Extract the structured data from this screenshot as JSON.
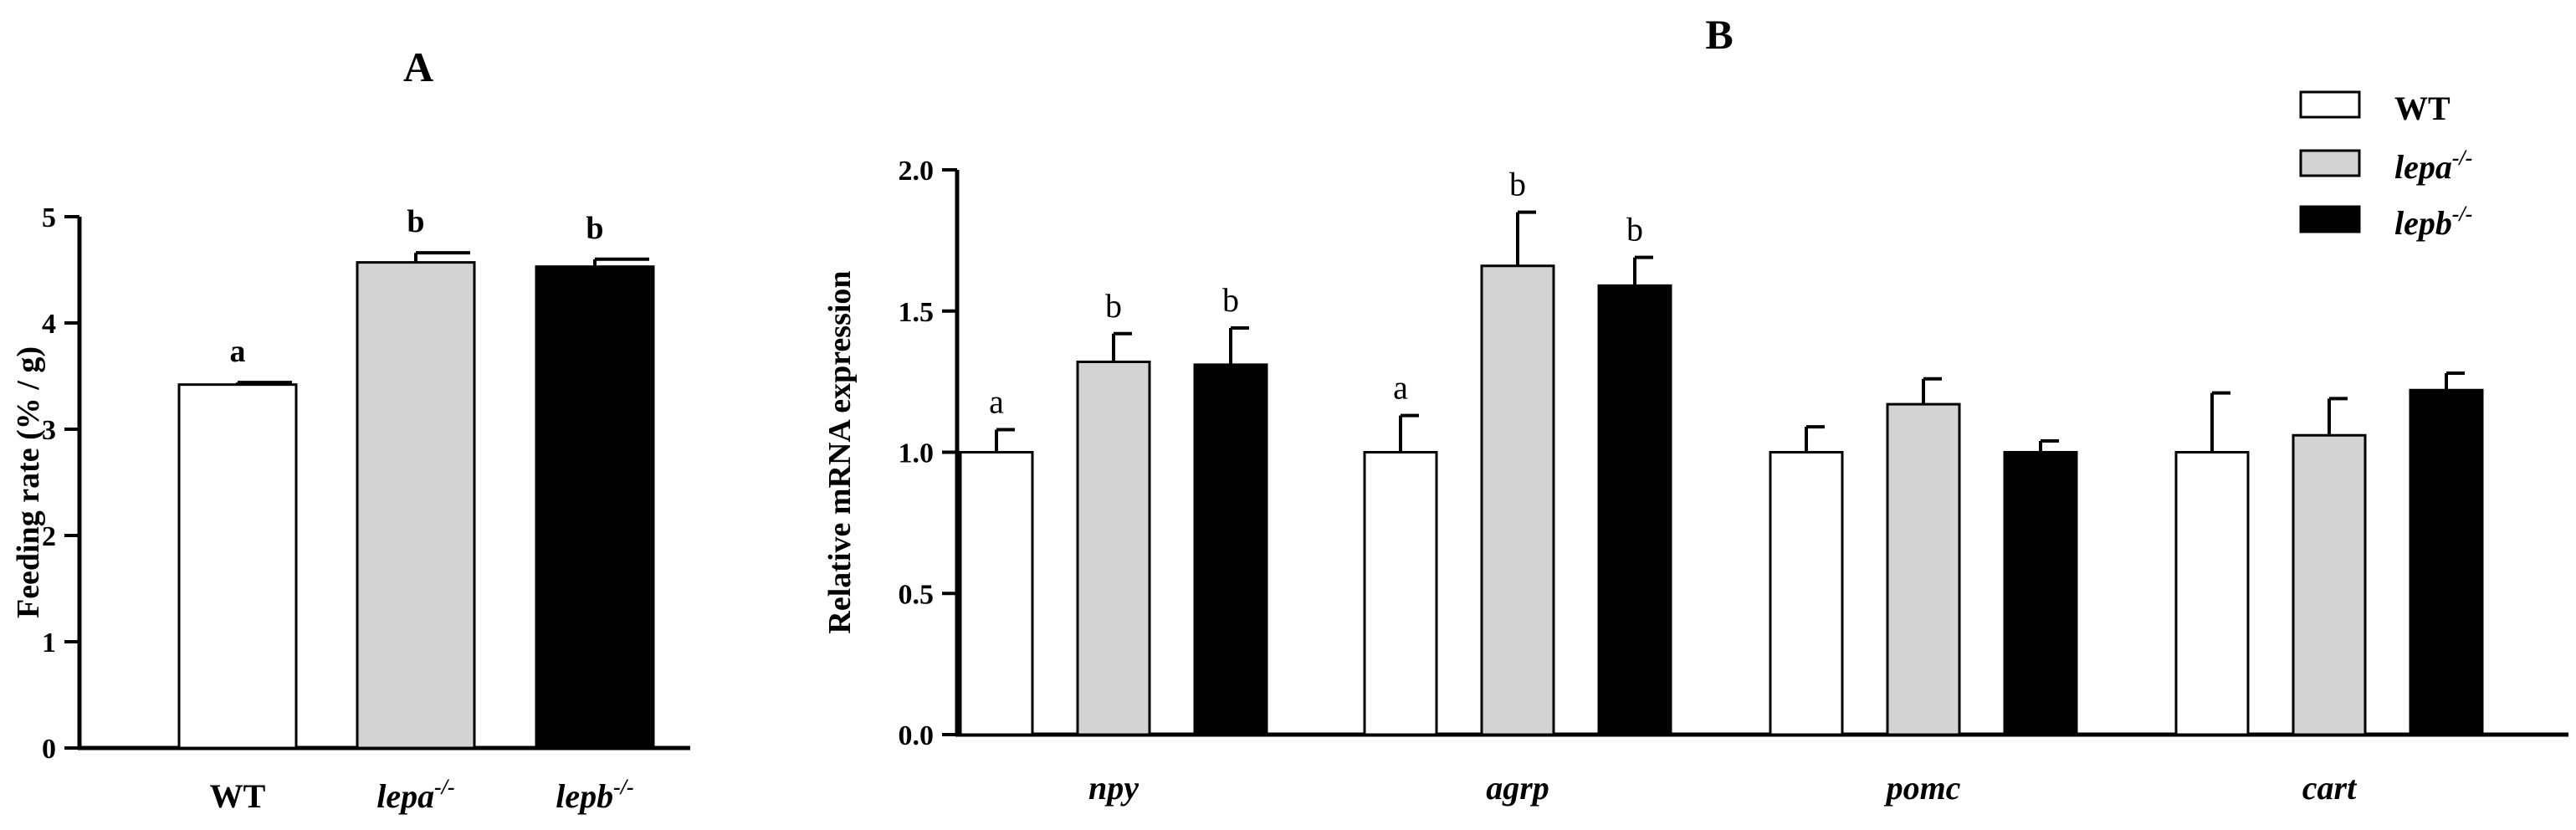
{
  "colors": {
    "WT": "#ffffff",
    "lepa": "#d3d3d3",
    "lepb": "#000000",
    "outline": "#000000"
  },
  "chart_data": [
    {
      "panel": "A",
      "type": "bar",
      "ylabel": "Feeding rate (% / g)",
      "ylim": [
        0,
        5
      ],
      "yticks": [
        0,
        1,
        2,
        3,
        4,
        5
      ],
      "categories": [
        {
          "base": "WT",
          "sup": ""
        },
        {
          "base": "lepa",
          "sup": "-/-"
        },
        {
          "base": "lepb",
          "sup": "-/-"
        }
      ],
      "values": [
        3.42,
        4.57,
        4.53
      ],
      "errors": [
        0.02,
        0.09,
        0.07
      ],
      "fills": [
        "WT",
        "lepa",
        "lepb"
      ],
      "sig": [
        "a",
        "b",
        "b"
      ]
    },
    {
      "panel": "B",
      "type": "bar",
      "ylabel": "Relative mRNA expression",
      "ylim": [
        0,
        2.0
      ],
      "yticks": [
        "0.0",
        "0.5",
        "1.0",
        "1.5",
        "2.0"
      ],
      "categories": [
        "npy",
        "agrp",
        "pomc",
        "cart"
      ],
      "legend_position": "top-right",
      "series": [
        {
          "name": "WT",
          "sup": "",
          "color_key": "WT",
          "values": [
            1.0,
            1.0,
            1.0,
            1.0
          ],
          "errors": [
            0.08,
            0.13,
            0.09,
            0.21
          ],
          "sig": [
            "a",
            "a",
            "",
            ""
          ]
        },
        {
          "name": "lepa",
          "sup": "-/-",
          "color_key": "lepa",
          "values": [
            1.32,
            1.66,
            1.17,
            1.06
          ],
          "errors": [
            0.1,
            0.19,
            0.09,
            0.13
          ],
          "sig": [
            "b",
            "b",
            "",
            ""
          ]
        },
        {
          "name": "lepb",
          "sup": "-/-",
          "color_key": "lepb",
          "values": [
            1.31,
            1.59,
            1.0,
            1.22
          ],
          "errors": [
            0.13,
            0.1,
            0.04,
            0.06
          ],
          "sig": [
            "b",
            "b",
            "",
            ""
          ]
        }
      ]
    }
  ]
}
